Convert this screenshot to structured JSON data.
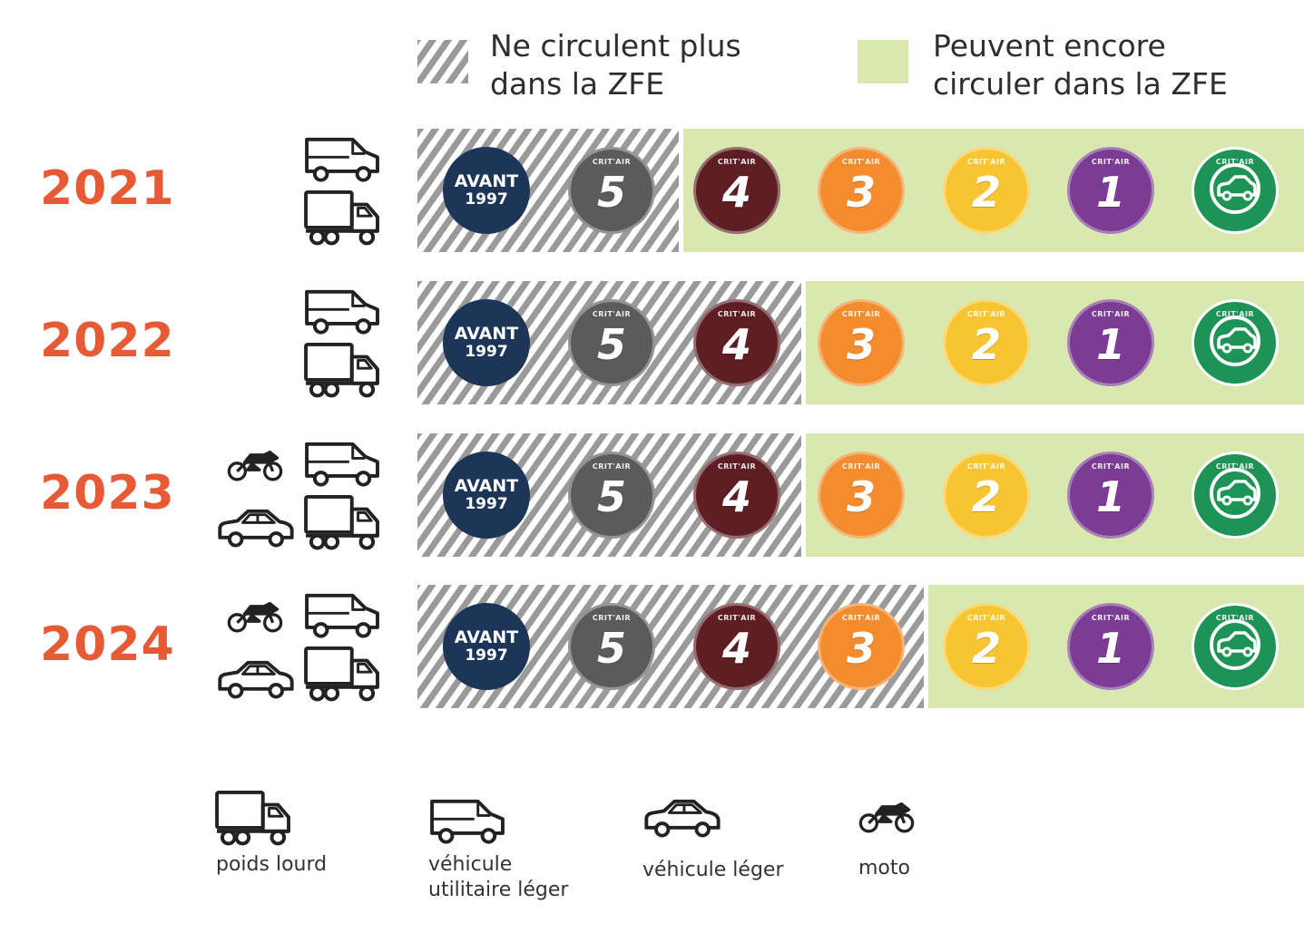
{
  "legend": {
    "excluded_text": [
      "Ne circulent plus",
      "dans la ZFE"
    ],
    "allowed_text": [
      "Peuvent encore",
      "circuler dans la ZFE"
    ],
    "hatch_color": "#9a9a9a",
    "allowed_color": "#d9e8ae"
  },
  "badges": [
    {
      "key": "avant",
      "line1": "AVANT",
      "line2": "1997",
      "color": "#1d3557"
    },
    {
      "key": "5",
      "crit": "CRIT'AIR",
      "num": "5",
      "color": "#5b5b5b"
    },
    {
      "key": "4",
      "crit": "CRIT'AIR",
      "num": "4",
      "color": "#5e1f24"
    },
    {
      "key": "3",
      "crit": "CRIT'AIR",
      "num": "3",
      "color": "#f28c2e"
    },
    {
      "key": "2",
      "crit": "CRIT'AIR",
      "num": "2",
      "color": "#f7c531"
    },
    {
      "key": "1",
      "crit": "CRIT'AIR",
      "num": "1",
      "color": "#7a3d93"
    },
    {
      "key": "electrique",
      "crit": "CRIT'AIR",
      "icon": "electric-car-icon",
      "color": "#1e9356"
    }
  ],
  "rows": [
    {
      "year": "2021",
      "banned_count": 2,
      "vehicles": [
        "utility-van-icon",
        "heavy-truck-icon"
      ]
    },
    {
      "year": "2022",
      "banned_count": 3,
      "vehicles": [
        "utility-van-icon",
        "heavy-truck-icon"
      ]
    },
    {
      "year": "2023",
      "banned_count": 3,
      "vehicles": [
        "motorcycle-icon",
        "utility-van-icon",
        "car-icon",
        "heavy-truck-icon"
      ]
    },
    {
      "year": "2024",
      "banned_count": 4,
      "vehicles": [
        "motorcycle-icon",
        "utility-van-icon",
        "car-icon",
        "heavy-truck-icon"
      ]
    }
  ],
  "vehicle_legend": [
    {
      "icon": "heavy-truck-icon",
      "label": [
        "poids lourd"
      ]
    },
    {
      "icon": "utility-van-icon",
      "label": [
        "véhicule",
        "utilitaire léger"
      ]
    },
    {
      "icon": "car-icon",
      "label": [
        "véhicule léger"
      ]
    },
    {
      "icon": "motorcycle-icon",
      "label": [
        "moto"
      ]
    }
  ]
}
